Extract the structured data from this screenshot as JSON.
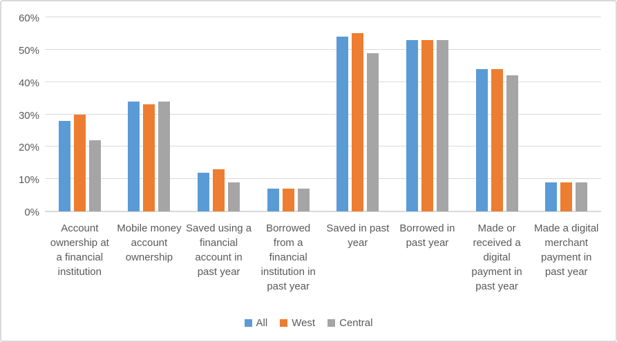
{
  "chart_data": {
    "type": "bar",
    "categories": [
      "Account ownership at a financial institution",
      "Mobile money account ownership",
      "Saved using a financial account  in past year",
      "Borrowed from a financial institution in past year",
      "Saved  in past year",
      "Borrowed in past year",
      "Made or received a digital payment in past year",
      "Made a digital merchant payment in past year"
    ],
    "series": [
      {
        "name": "All",
        "color": "#5b9bd5",
        "values": [
          28,
          34,
          12,
          7,
          54,
          53,
          44,
          9
        ]
      },
      {
        "name": "West",
        "color": "#ed7d31",
        "values": [
          30,
          33,
          13,
          7,
          55,
          53,
          44,
          9
        ]
      },
      {
        "name": "Central",
        "color": "#a5a5a5",
        "values": [
          22,
          34,
          9,
          7,
          49,
          53,
          42,
          9
        ]
      }
    ],
    "title": "",
    "xlabel": "",
    "ylabel": "",
    "ylim": [
      0,
      60
    ],
    "yticks": [
      "0%",
      "10%",
      "20%",
      "30%",
      "40%",
      "50%",
      "60%"
    ],
    "grid": "horizontal",
    "legend_position": "bottom",
    "gridline_color": "#d9d9d9",
    "text_color": "#595959"
  }
}
